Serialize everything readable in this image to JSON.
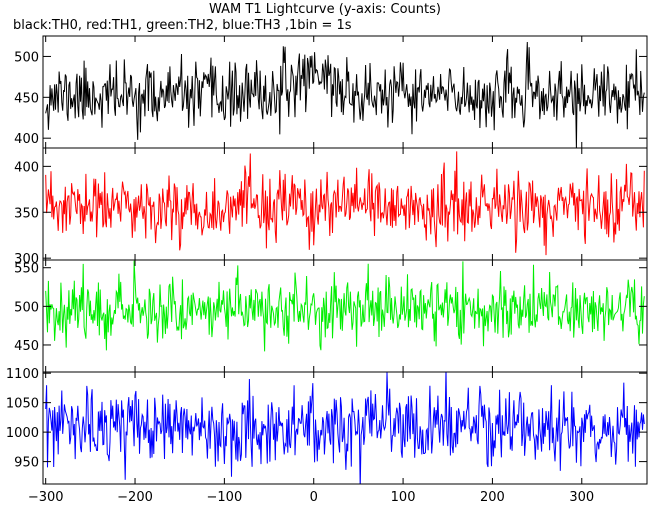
{
  "chart_data": {
    "type": "line",
    "title": "WAM T1 Lightcurve (y-axis: Counts)",
    "subtitle": "black:TH0, red:TH1, green:TH2, blue:TH3 ,1bin = 1s",
    "x": {
      "start": -300,
      "end": 370,
      "step": 1
    },
    "xlim": [
      -303,
      373
    ],
    "xticks": [
      -300,
      -200,
      -100,
      0,
      100,
      200,
      300
    ],
    "xtick_labels": [
      "−300",
      "−200",
      "−100",
      "0",
      "100",
      "200",
      "300"
    ],
    "panels": [
      {
        "name": "TH0",
        "color": "#000000",
        "ylim": [
          388,
          525
        ],
        "yticks": [
          400,
          450,
          500
        ],
        "ytick_labels": [
          "400",
          "450",
          "500"
        ],
        "mean": 452,
        "noise_sd": 19,
        "seed": 11,
        "features": [
          {
            "x": 0,
            "height": 32,
            "width": 18
          }
        ]
      },
      {
        "name": "TH1",
        "color": "#ff0000",
        "ylim": [
          298,
          420
        ],
        "yticks": [
          300,
          350,
          400
        ],
        "ytick_labels": [
          "300",
          "350",
          "400"
        ],
        "mean": 355,
        "noise_sd": 18,
        "seed": 23,
        "features": []
      },
      {
        "name": "TH2",
        "color": "#00ee00",
        "ylim": [
          415,
          560
        ],
        "yticks": [
          450,
          500,
          550
        ],
        "ytick_labels": [
          "450",
          "500",
          "550"
        ],
        "mean": 497,
        "noise_sd": 20,
        "seed": 37,
        "features": []
      },
      {
        "name": "TH3",
        "color": "#0000ff",
        "ylim": [
          912,
          1102
        ],
        "yticks": [
          950,
          1000,
          1050,
          1100
        ],
        "ytick_labels": [
          "950",
          "1000",
          "1050",
          "1100"
        ],
        "mean": 1008,
        "noise_sd": 31,
        "seed": 53,
        "features": []
      }
    ]
  }
}
